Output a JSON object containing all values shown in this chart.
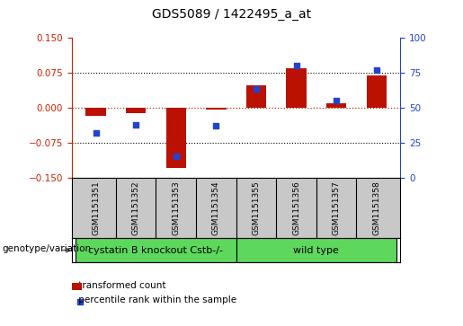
{
  "title": "GDS5089 / 1422495_a_at",
  "samples": [
    "GSM1151351",
    "GSM1151352",
    "GSM1151353",
    "GSM1151354",
    "GSM1151355",
    "GSM1151356",
    "GSM1151357",
    "GSM1151358"
  ],
  "transformed_count": [
    -0.018,
    -0.012,
    -0.13,
    -0.005,
    0.048,
    0.085,
    0.01,
    0.068
  ],
  "percentile_rank": [
    32,
    38,
    15,
    37,
    63,
    80,
    55,
    77
  ],
  "groups": [
    {
      "label": "cystatin B knockout Cstb-/-",
      "n_samples": 4,
      "color": "#5dd85d"
    },
    {
      "label": "wild type",
      "n_samples": 4,
      "color": "#5dd85d"
    }
  ],
  "group_boundary": 4,
  "ylim_left": [
    -0.15,
    0.15
  ],
  "ylim_right": [
    0,
    100
  ],
  "yticks_left": [
    -0.15,
    -0.075,
    0,
    0.075,
    0.15
  ],
  "yticks_right": [
    0,
    25,
    50,
    75,
    100
  ],
  "bar_color": "#bb1100",
  "dot_color": "#2244cc",
  "bar_width": 0.5,
  "dot_size": 22,
  "legend_bar_label": "transformed count",
  "legend_dot_label": "percentile rank within the sample",
  "genotype_label": "genotype/variation",
  "left_axis_color": "#cc2200",
  "right_axis_color": "#2244cc",
  "grid_color": "black",
  "zero_line_color": "#cc2200",
  "plot_bg_color": "white",
  "outer_bg_color": "white",
  "sample_box_color": "#c8c8c8",
  "title_fontsize": 10,
  "tick_fontsize": 7.5,
  "sample_fontsize": 6.5,
  "group_fontsize": 8,
  "legend_fontsize": 7.5,
  "genotype_fontsize": 7.5
}
